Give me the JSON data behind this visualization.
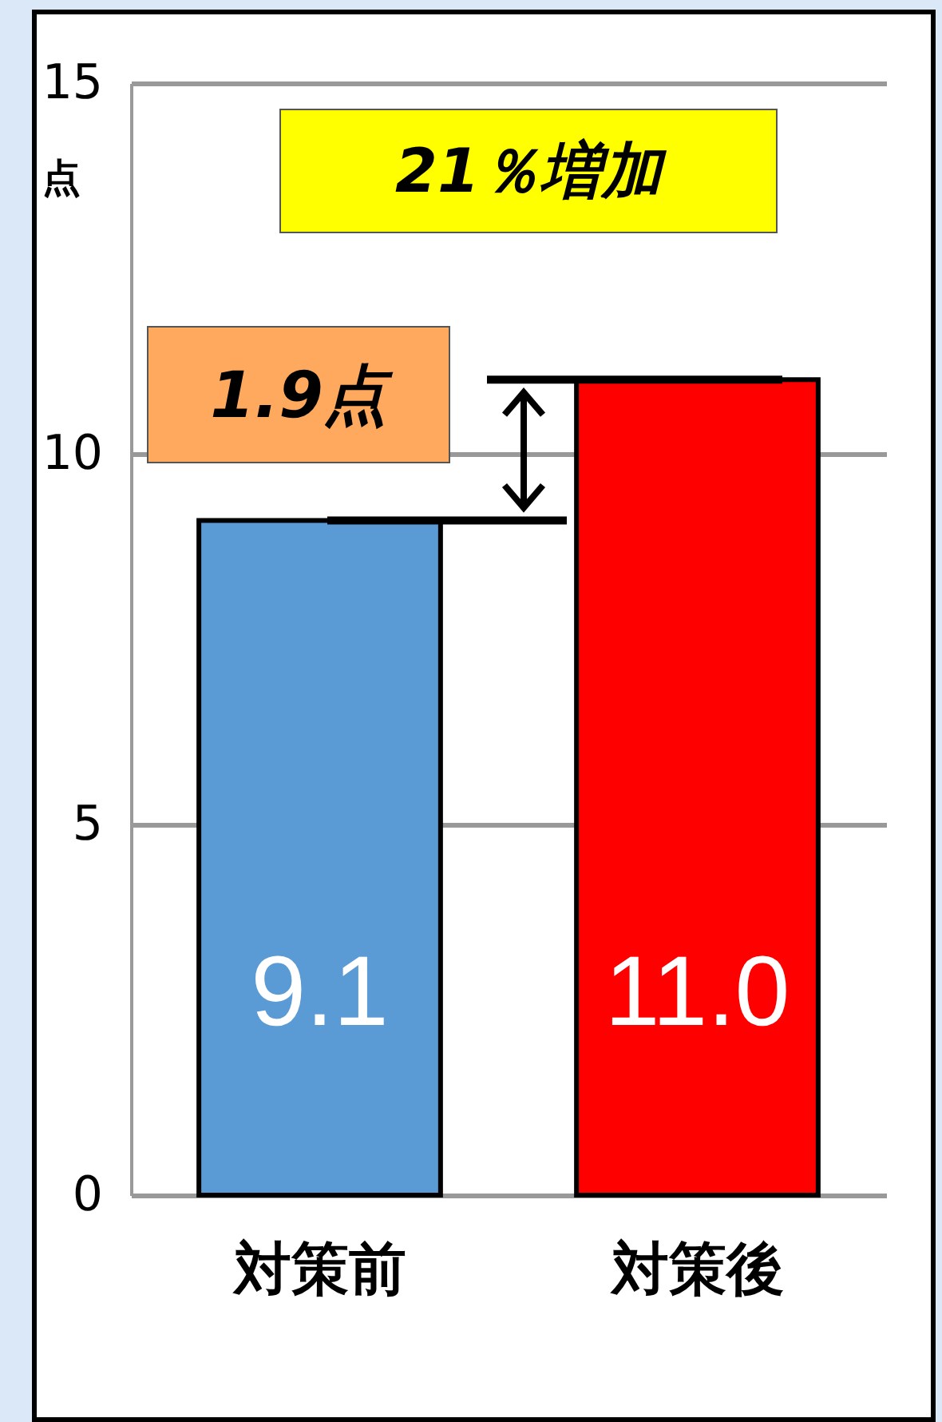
{
  "chart_data": {
    "type": "bar",
    "ylabel": "点",
    "categories": [
      "対策前",
      "対策後"
    ],
    "values": [
      9.1,
      11.0
    ],
    "colors": [
      "#5b9bd5",
      "#ff0000"
    ],
    "value_labels": [
      "9.1",
      "11.0"
    ],
    "ylim": [
      0,
      15
    ],
    "yticks": [
      0,
      5,
      10,
      15
    ],
    "grid": "y",
    "annotations": [
      "21％増加",
      "1.9点"
    ]
  }
}
